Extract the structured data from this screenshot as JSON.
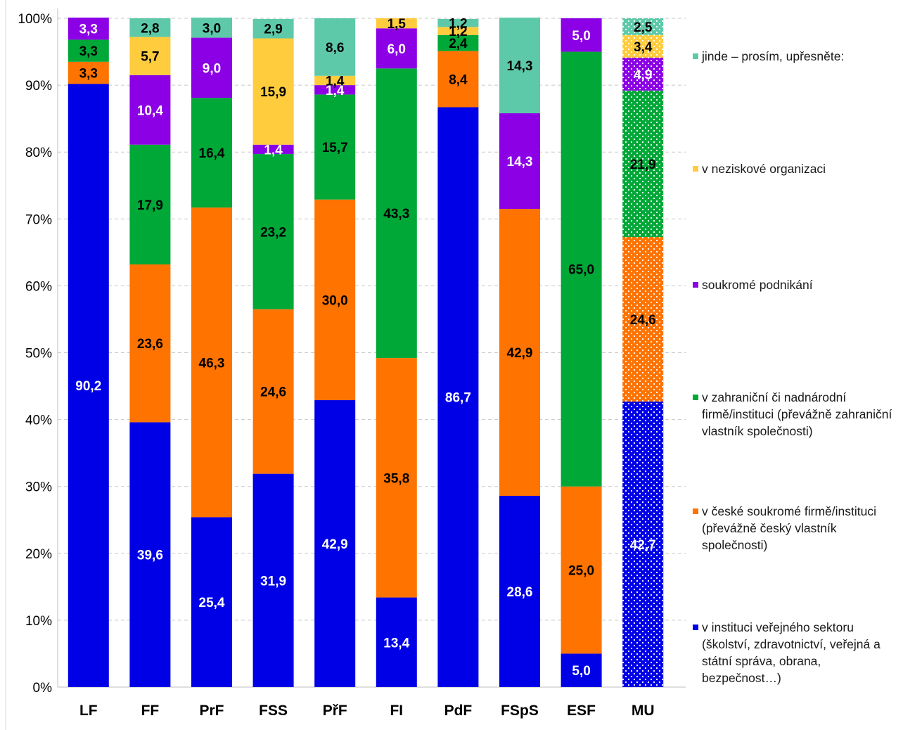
{
  "chart_data": {
    "type": "bar",
    "stacked": true,
    "normalized_percent": true,
    "categories": [
      "LF",
      "FF",
      "PrF",
      "FSS",
      "PřF",
      "FI",
      "PdF",
      "FSpS",
      "ESF",
      "MU"
    ],
    "series": [
      {
        "name": "v instituci veřejného sektoru (školství, zdravotnictví, veřejná a státní správa, obrana, bezpečnost…)",
        "color": "#0000e6",
        "label_color": "#ffffff",
        "values": [
          90.2,
          39.6,
          25.4,
          31.9,
          42.9,
          13.4,
          86.7,
          28.6,
          5.0,
          42.7
        ]
      },
      {
        "name": "v české soukromé firmě/instituci (převážně český vlastník společnosti)",
        "color": "#ff7300",
        "label_color": "#000000",
        "values": [
          3.3,
          23.6,
          46.3,
          24.6,
          30.0,
          35.8,
          8.4,
          42.9,
          25.0,
          24.6
        ]
      },
      {
        "name": "v zahraniční či nadnárodní firmě/instituci (převážně zahraniční vlastník společnosti)",
        "color": "#00a838",
        "label_color": "#000000",
        "values": [
          3.3,
          17.9,
          16.4,
          23.2,
          15.7,
          43.3,
          2.4,
          0,
          65.0,
          21.9
        ]
      },
      {
        "name": "soukromé podnikání",
        "color": "#8c00e6",
        "label_color": "#ffffff",
        "values": [
          3.3,
          10.4,
          9.0,
          1.4,
          1.4,
          6.0,
          0,
          14.3,
          5.0,
          4.9
        ]
      },
      {
        "name": "v neziskové organizaci",
        "color": "#ffcc3e",
        "label_color": "#000000",
        "values": [
          0,
          5.7,
          0,
          15.9,
          1.4,
          1.5,
          1.2,
          0,
          0,
          3.4
        ]
      },
      {
        "name": "jinde – prosím, upřesněte:",
        "color": "#5dc9a8",
        "label_color": "#000000",
        "values": [
          0,
          2.8,
          3.0,
          2.9,
          8.6,
          0,
          1.2,
          14.3,
          0,
          2.5
        ]
      }
    ],
    "patterned_category": "MU",
    "y_ticks": [
      "0%",
      "10%",
      "20%",
      "30%",
      "40%",
      "50%",
      "60%",
      "70%",
      "80%",
      "90%",
      "100%"
    ],
    "ylim": [
      0,
      100
    ],
    "grid": true,
    "legend_position": "right"
  }
}
